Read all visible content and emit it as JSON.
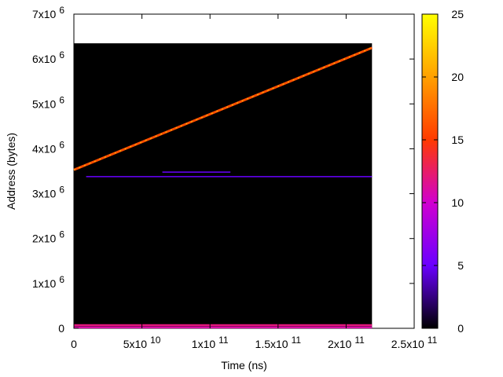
{
  "chart_data": {
    "type": "heatmap",
    "title": "",
    "xlabel": "Time (ns)",
    "ylabel": "Address (bytes)",
    "xlim": [
      0,
      250000000000
    ],
    "ylim": [
      0,
      7000000
    ],
    "x_ticks": [
      {
        "value": 0,
        "label": "0",
        "exp": ""
      },
      {
        "value": 50000000000,
        "label": "5x10",
        "exp": "10"
      },
      {
        "value": 100000000000,
        "label": "1x10",
        "exp": "11"
      },
      {
        "value": 150000000000,
        "label": "1.5x10",
        "exp": "11"
      },
      {
        "value": 200000000000,
        "label": "2x10",
        "exp": "11"
      },
      {
        "value": 250000000000,
        "label": "2.5x10",
        "exp": "11"
      }
    ],
    "y_ticks": [
      {
        "value": 0,
        "label": "0",
        "exp": ""
      },
      {
        "value": 1000000,
        "label": "1x10",
        "exp": "6"
      },
      {
        "value": 2000000,
        "label": "2x10",
        "exp": "6"
      },
      {
        "value": 3000000,
        "label": "3x10",
        "exp": "6"
      },
      {
        "value": 4000000,
        "label": "4x10",
        "exp": "6"
      },
      {
        "value": 5000000,
        "label": "5x10",
        "exp": "6"
      },
      {
        "value": 6000000,
        "label": "6x10",
        "exp": "6"
      },
      {
        "value": 7000000,
        "label": "7x10",
        "exp": "6"
      }
    ],
    "data_extent": {
      "x": [
        0,
        219000000000
      ],
      "y": [
        0,
        6350000
      ]
    },
    "colorbar": {
      "range": [
        0,
        25
      ],
      "ticks": [
        0,
        5,
        10,
        15,
        20,
        25
      ],
      "colors": [
        "#000000",
        "#6a00ff",
        "#d000d0",
        "#ff3a00",
        "#ffa000",
        "#ffff00"
      ]
    },
    "features": [
      {
        "kind": "diagonal-line",
        "x": [
          0,
          219000000000
        ],
        "y": [
          3530000,
          6250000
        ],
        "intensity": 16
      },
      {
        "kind": "horizontal-line",
        "x": [
          9000000000,
          219000000000
        ],
        "y": 3380000,
        "intensity": 5
      },
      {
        "kind": "horizontal-line",
        "x": [
          65000000000,
          115000000000
        ],
        "y": 3480000,
        "intensity": 5
      },
      {
        "kind": "horizontal-band",
        "x": [
          0,
          219000000000
        ],
        "y": 70000,
        "intensity": 12
      },
      {
        "kind": "horizontal-band",
        "x": [
          0,
          219000000000
        ],
        "y": 20000,
        "intensity": 11
      }
    ],
    "grid": false,
    "legend": "colorbar-right"
  }
}
